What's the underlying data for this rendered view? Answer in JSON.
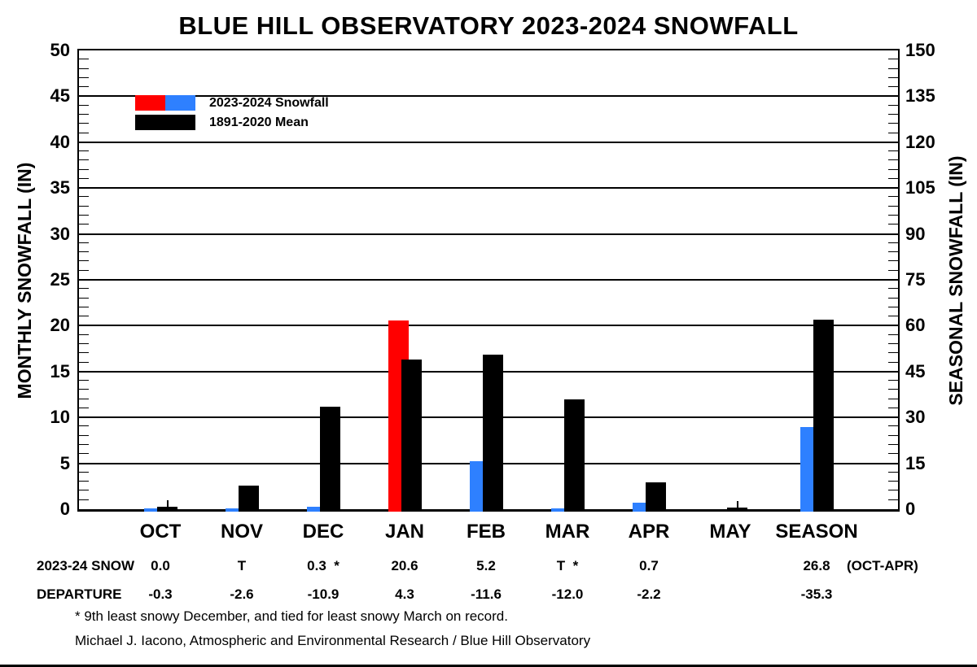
{
  "chart_data": {
    "type": "bar",
    "title": "BLUE HILL OBSERVATORY 2023-2024 SNOWFALL",
    "categories": [
      "OCT",
      "NOV",
      "DEC",
      "JAN",
      "FEB",
      "MAR",
      "APR",
      "MAY",
      "SEASON"
    ],
    "left_axis": {
      "label": "MONTHLY SNOWFALL (IN)",
      "min": 0,
      "max": 50,
      "major_step": 5,
      "minor_step": 1,
      "ticks": [
        0,
        5,
        10,
        15,
        20,
        25,
        30,
        35,
        40,
        45,
        50
      ]
    },
    "right_axis": {
      "label": "SEASONAL SNOWFALL (IN)",
      "min": 0,
      "max": 150,
      "major_step": 15,
      "minor_step": 3,
      "ticks": [
        0,
        15,
        30,
        45,
        60,
        75,
        90,
        105,
        120,
        135,
        150
      ]
    },
    "grid": "horizontal-majors",
    "legend": {
      "position": "top-left-inside",
      "items": [
        {
          "label": "2023-2024 Snowfall",
          "swatch_colors": [
            "#ff0000",
            "#2e80ff"
          ]
        },
        {
          "label": "1891-2020 Mean",
          "swatch_colors": [
            "#000000"
          ]
        }
      ]
    },
    "colors": {
      "snow_red": "#ff0000",
      "snow_blue": "#2e80ff",
      "mean_black": "#000000"
    },
    "series": [
      {
        "name": "2023-2024 Snowfall",
        "bars": [
          {
            "cat": "OCT",
            "value": 0.0,
            "trace": true,
            "color": "#2e80ff"
          },
          {
            "cat": "NOV",
            "value": 0.0,
            "trace": true,
            "color": "#2e80ff"
          },
          {
            "cat": "DEC",
            "value": 0.3,
            "color": "#2e80ff"
          },
          {
            "cat": "JAN",
            "value": 20.6,
            "color": "#ff0000"
          },
          {
            "cat": "FEB",
            "value": 5.2,
            "color": "#2e80ff"
          },
          {
            "cat": "MAR",
            "value": 0.0,
            "trace": true,
            "color": "#2e80ff"
          },
          {
            "cat": "APR",
            "value": 0.7,
            "color": "#2e80ff"
          },
          {
            "cat": "MAY",
            "value": null,
            "color": "#2e80ff"
          },
          {
            "cat": "SEASON",
            "value": 26.8,
            "axis": "right",
            "color": "#2e80ff"
          }
        ]
      },
      {
        "name": "1891-2020 Mean",
        "color": "#000000",
        "bars": [
          {
            "cat": "OCT",
            "value": 0.3,
            "spike": true
          },
          {
            "cat": "NOV",
            "value": 2.6
          },
          {
            "cat": "DEC",
            "value": 11.2
          },
          {
            "cat": "JAN",
            "value": 16.3
          },
          {
            "cat": "FEB",
            "value": 16.8
          },
          {
            "cat": "MAR",
            "value": 12.0
          },
          {
            "cat": "APR",
            "value": 2.9
          },
          {
            "cat": "MAY",
            "value": 0.1,
            "spike": true
          },
          {
            "cat": "SEASON",
            "value": 62.1,
            "axis": "right"
          }
        ]
      }
    ],
    "table": {
      "rows": [
        {
          "label": "2023-24 SNOW",
          "values": [
            "0.0",
            "T",
            "0.3  *",
            "20.6",
            "5.2",
            "T  *",
            "0.7",
            "",
            "26.8"
          ],
          "suffix": "(OCT-APR)"
        },
        {
          "label": "DEPARTURE",
          "values": [
            "-0.3",
            "-2.6",
            "-10.9",
            "4.3",
            "-11.6",
            "-12.0",
            "-2.2",
            "",
            "-35.3"
          ],
          "suffix": ""
        }
      ]
    },
    "footnote": "* 9th least snowy December, and tied for least snowy March on record.",
    "credit": "Michael J. Iacono, Atmospheric and Environmental Research / Blue Hill Observatory"
  }
}
